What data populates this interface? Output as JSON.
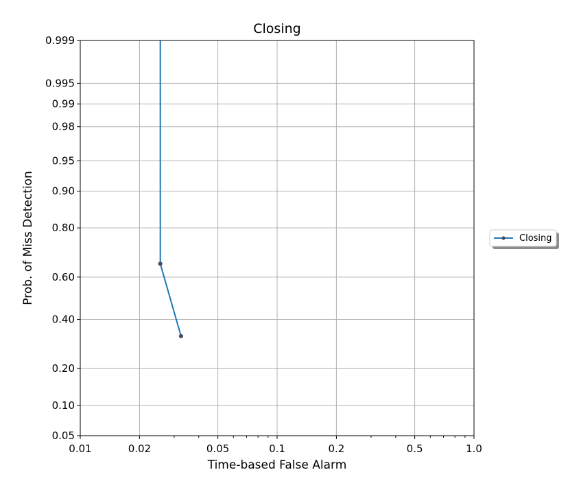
{
  "chart_data": {
    "type": "line",
    "title": "Closing",
    "xlabel": "Time-based False Alarm",
    "ylabel": "Prob. of Miss Detection",
    "x_scale": "log",
    "y_scale": "probit",
    "xlim": [
      0.01,
      1.0
    ],
    "ylim": [
      0.05,
      0.999
    ],
    "x_ticks": [
      0.01,
      0.02,
      0.05,
      0.1,
      0.2,
      0.5,
      1.0
    ],
    "x_tick_labels": [
      "0.01",
      "0.02",
      "0.05",
      "0.1",
      "0.2",
      "0.5",
      "1.0"
    ],
    "y_ticks": [
      0.05,
      0.1,
      0.2,
      0.4,
      0.6,
      0.8,
      0.9,
      0.95,
      0.98,
      0.99,
      0.995,
      0.999
    ],
    "y_tick_labels": [
      "0.05",
      "0.10",
      "0.20",
      "0.40",
      "0.60",
      "0.80",
      "0.90",
      "0.95",
      "0.98",
      "0.99",
      "0.995",
      "0.999"
    ],
    "grid": true,
    "legend_position": "outside-right",
    "series": [
      {
        "name": "Closing",
        "color": "#1f77b4",
        "marker_color": "#4a4a6a",
        "x": [
          0.0255,
          0.0255,
          0.0325
        ],
        "y": [
          0.999,
          0.66,
          0.325
        ],
        "markers": [
          false,
          true,
          true
        ]
      }
    ]
  }
}
